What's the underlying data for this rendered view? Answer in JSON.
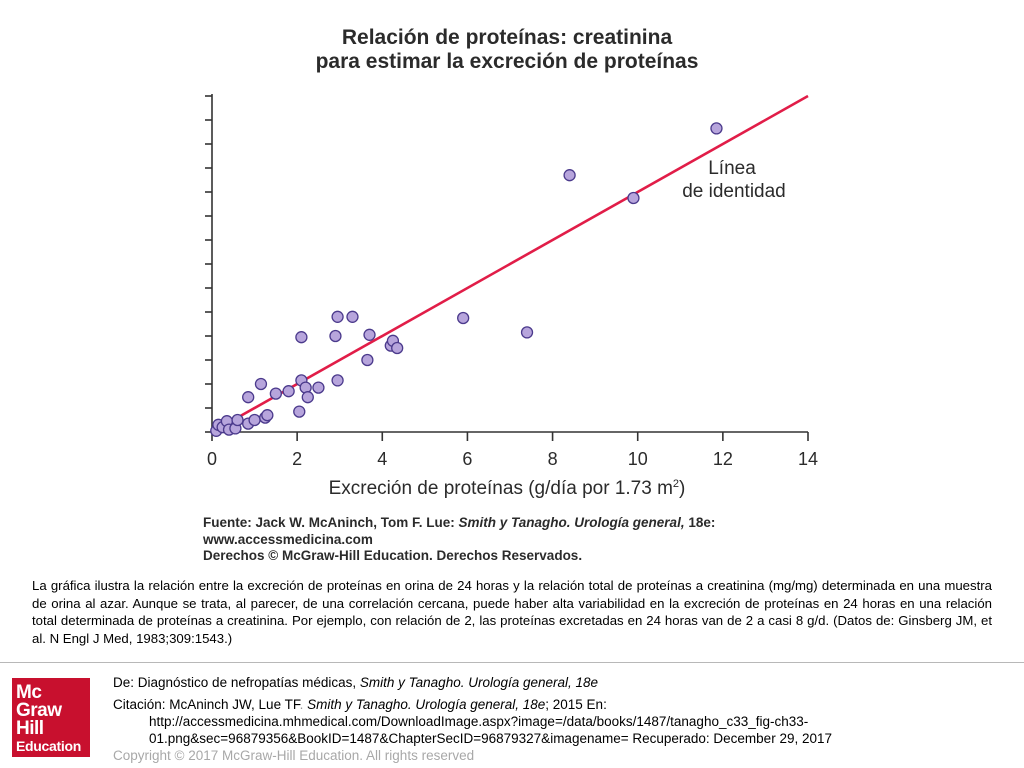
{
  "chart_data": {
    "type": "scatter",
    "title": "Relación de proteínas: creatinina",
    "subtitle": "para estimar la excreción de proteínas",
    "xlabel": "Excreción de proteínas (g/día por 1.73 m",
    "xlabel_sup": "2",
    "xlabel_end": ")",
    "ylabel": "",
    "xlim": [
      0,
      14
    ],
    "ylim": [
      0,
      14
    ],
    "x_ticks": [
      0,
      2,
      4,
      6,
      8,
      10,
      12,
      14
    ],
    "x_tick_labels": [
      "0",
      "2",
      "4",
      "6",
      "8",
      "10",
      "12",
      "14"
    ],
    "y_ticks": [
      0,
      1,
      2,
      3,
      4,
      5,
      6,
      7,
      8,
      9,
      10,
      11,
      12,
      13,
      14
    ],
    "grid": false,
    "identity_line": {
      "from": [
        0,
        0
      ],
      "to": [
        14,
        14
      ],
      "color": "#e11d48"
    },
    "annotation": [
      "Línea",
      "de identidad"
    ],
    "point_color": "#b7a5dc",
    "point_stroke": "#4b3a8c",
    "series": [
      {
        "points": [
          [
            0.1,
            0.05
          ],
          [
            0.15,
            0.3
          ],
          [
            0.25,
            0.2
          ],
          [
            0.35,
            0.45
          ],
          [
            0.4,
            0.1
          ],
          [
            0.55,
            0.15
          ],
          [
            0.6,
            0.5
          ],
          [
            0.85,
            0.35
          ],
          [
            0.85,
            1.45
          ],
          [
            1.0,
            0.5
          ],
          [
            1.15,
            2.0
          ],
          [
            1.25,
            0.6
          ],
          [
            1.3,
            0.7
          ],
          [
            1.5,
            1.6
          ],
          [
            1.8,
            1.7
          ],
          [
            2.05,
            0.85
          ],
          [
            2.1,
            3.95
          ],
          [
            2.1,
            2.15
          ],
          [
            2.2,
            1.85
          ],
          [
            2.25,
            1.45
          ],
          [
            2.5,
            1.85
          ],
          [
            2.9,
            4.0
          ],
          [
            2.95,
            4.8
          ],
          [
            2.95,
            2.15
          ],
          [
            3.3,
            4.8
          ],
          [
            3.65,
            3.0
          ],
          [
            3.7,
            4.05
          ],
          [
            4.2,
            3.6
          ],
          [
            4.25,
            3.8
          ],
          [
            4.35,
            3.5
          ],
          [
            5.9,
            4.75
          ],
          [
            7.4,
            4.15
          ],
          [
            8.4,
            10.7
          ],
          [
            9.9,
            9.75
          ],
          [
            11.85,
            12.65
          ]
        ]
      }
    ]
  },
  "source": {
    "line1_prefix": "Fuente: Jack W. McAninch, Tom F. Lue: ",
    "line1_italic": "Smith y Tanagho. Urología general,",
    "line1_suffix": " 18e:",
    "line2": "www.accessmedicina.com",
    "line3": "Derechos © McGraw-Hill Education. Derechos Reservados."
  },
  "caption": "La gráfica ilustra la relación entre la excreción de proteínas en orina de 24 horas y la relación total de proteínas a creatinina (mg/mg) determinada en una muestra de orina al azar. Aunque se trata, al parecer, de una correlación cercana, puede haber alta variabilidad en la excreción de proteínas en 24 horas en una relación total determinada de proteínas a creatinina. Por ejemplo, con relación de 2, las proteínas excretadas en 24 horas van de 2 a casi 8 g/d. (Datos de: Ginsberg JM, et al. N Engl J Med, 1983;309:1543.)",
  "footer": {
    "de_label": "De: ",
    "de_text_plain": "Diagnóstico de nefropatías médicas, ",
    "de_text_italic": "Smith y Tanagho. Urología general, 18e",
    "citation_label": "Citación: ",
    "citation_authors": "McAninch JW, Lue TF",
    "citation_dot": ". ",
    "citation_italic": "Smith y Tanagho. Urología general, 18e",
    "citation_rest": "; 2015 En:",
    "url_line1": "http://accessmedicina.mhmedical.com/DownloadImage.aspx?image=/data/books/1487/tanagho_c33_fig-ch33-",
    "url_line2": "01.png&sec=96879356&BookID=1487&ChapterSecID=96879327&imagename= Recuperado: December 29, 2017",
    "copyright": "Copyright © 2017 McGraw-Hill Education. All rights reserved"
  },
  "logo": {
    "lines": [
      "Mc",
      "Graw",
      "Hill"
    ],
    "sub": "Education",
    "color": "#c8102e"
  }
}
